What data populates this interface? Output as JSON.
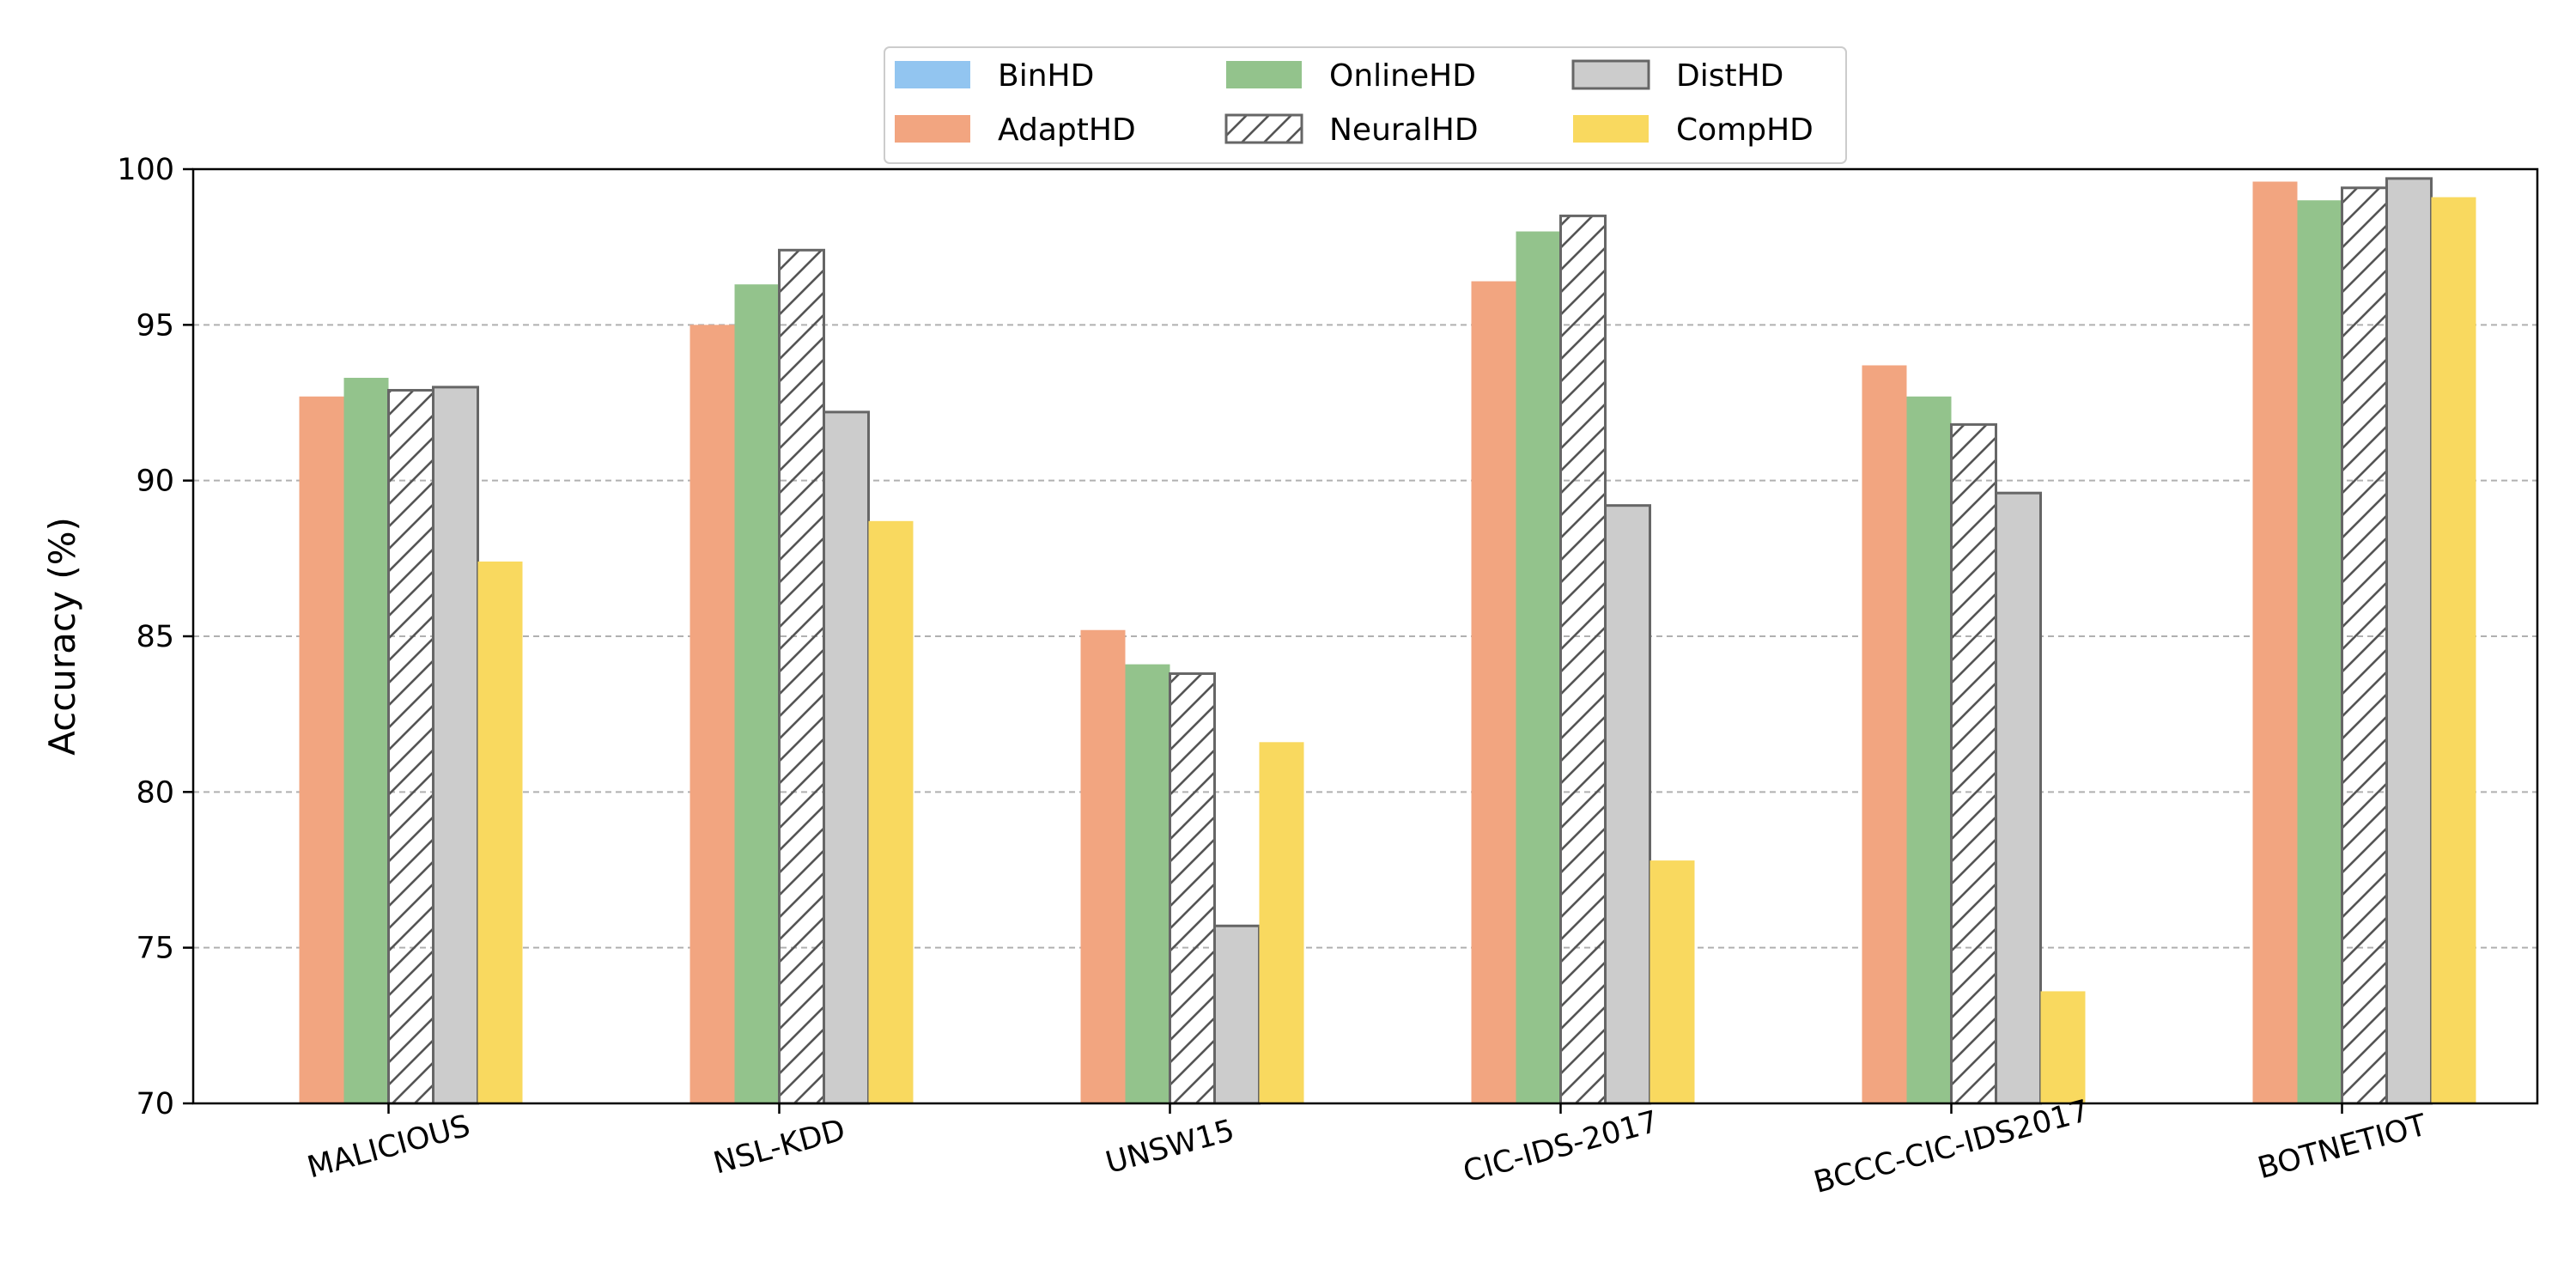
{
  "chart_data": {
    "type": "bar",
    "title": "",
    "xlabel": "",
    "ylabel": "Accuracy (%)",
    "ylim": [
      70,
      100
    ],
    "yticks": [
      70,
      75,
      80,
      85,
      90,
      95,
      100
    ],
    "grid": "y-dashed",
    "legend_position": "top-center",
    "categories": [
      "MALICIOUS",
      "NSL-KDD",
      "UNSW15",
      "CIC-IDS-2017",
      "BCCC-CIC-IDS2017",
      "BOTNETIOT"
    ],
    "series": [
      {
        "name": "BinHD",
        "color": "#92c5f0",
        "hatch": false,
        "edge": false,
        "values": [
          null,
          null,
          null,
          null,
          null,
          null
        ]
      },
      {
        "name": "AdaptHD",
        "color": "#f2a580",
        "hatch": false,
        "edge": false,
        "values": [
          92.7,
          95.0,
          85.2,
          96.4,
          93.7,
          99.6
        ]
      },
      {
        "name": "OnlineHD",
        "color": "#93c38c",
        "hatch": false,
        "edge": false,
        "values": [
          93.3,
          96.3,
          84.1,
          98.0,
          92.7,
          99.0
        ]
      },
      {
        "name": "NeuralHD",
        "color": "#ffffff",
        "hatch": true,
        "edge": true,
        "values": [
          92.9,
          97.4,
          83.8,
          98.5,
          91.8,
          99.4
        ]
      },
      {
        "name": "DistHD",
        "color": "#cccccc",
        "hatch": false,
        "edge": true,
        "values": [
          93.0,
          92.2,
          75.7,
          89.2,
          89.6,
          99.7
        ]
      },
      {
        "name": "CompHD",
        "color": "#f9d95f",
        "hatch": false,
        "edge": false,
        "values": [
          87.4,
          88.7,
          81.6,
          77.8,
          73.6,
          99.1
        ]
      }
    ]
  }
}
